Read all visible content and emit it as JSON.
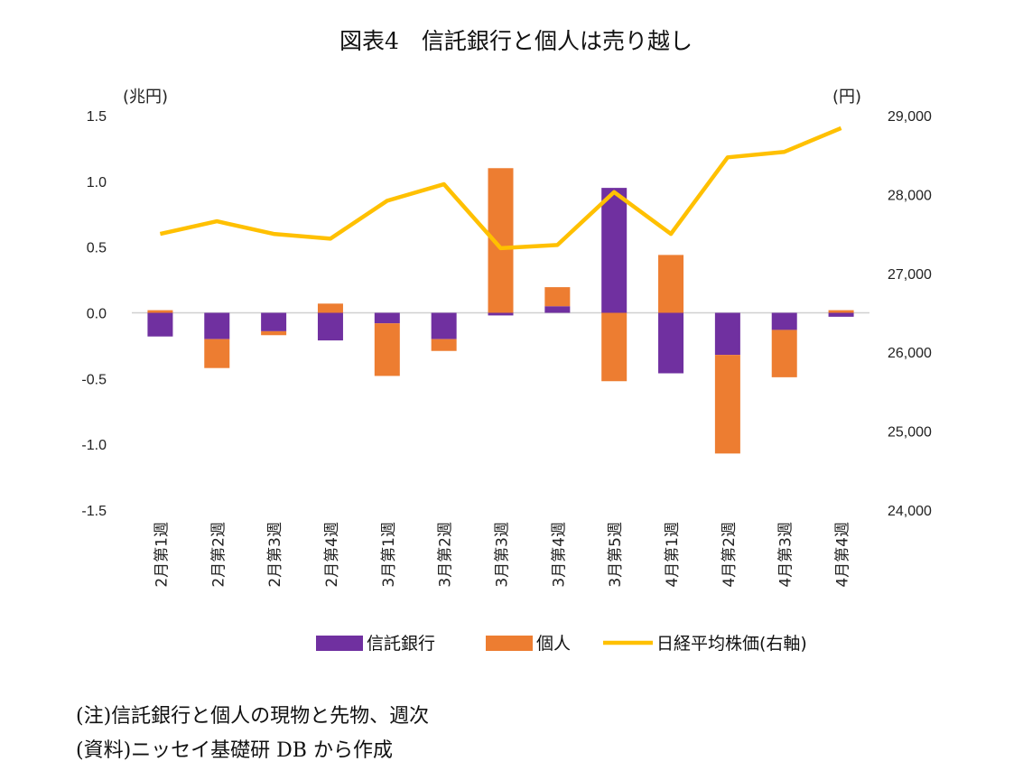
{
  "title": "図表4　信託銀行と個人は売り越し",
  "chart_data": {
    "type": "bar",
    "stacked": true,
    "categories": [
      "2月第1週",
      "2月第2週",
      "2月第3週",
      "2月第4週",
      "3月第1週",
      "3月第2週",
      "3月第3週",
      "3月第4週",
      "3月第5週",
      "4月第1週",
      "4月第2週",
      "4月第3週",
      "4月第4週"
    ],
    "y_left": {
      "unit_label": "(兆円)",
      "ylim": [
        -1.5,
        1.5
      ],
      "ticks": [
        "1.5",
        "1.0",
        "0.5",
        "0.0",
        "-0.5",
        "-1.0",
        "-1.5"
      ]
    },
    "y_right": {
      "unit_label": "(円)",
      "ylim": [
        24000,
        29000
      ],
      "ticks": [
        "29,000",
        "28,000",
        "27,000",
        "26,000",
        "25,000",
        "24,000"
      ]
    },
    "series": [
      {
        "name": "信託銀行",
        "type": "bar",
        "axis": "left",
        "color": "#7030a0",
        "values": [
          -0.18,
          -0.2,
          -0.14,
          -0.21,
          -0.08,
          -0.2,
          -0.02,
          0.05,
          0.95,
          -0.46,
          -0.32,
          -0.13,
          -0.03
        ]
      },
      {
        "name": "個人",
        "type": "bar",
        "axis": "left",
        "color": "#ed7d31",
        "values": [
          0.02,
          -0.22,
          -0.03,
          0.07,
          -0.4,
          -0.09,
          1.1,
          0.145,
          -0.52,
          0.44,
          -0.75,
          -0.36,
          0.02
        ]
      },
      {
        "name": "日経平均株価(右軸)",
        "type": "line",
        "axis": "right",
        "color": "#ffc000",
        "values": [
          27500,
          27660,
          27500,
          27440,
          27920,
          28130,
          27320,
          27360,
          28030,
          27500,
          28470,
          28540,
          28840
        ]
      }
    ],
    "grid": false,
    "legend": "bottom"
  },
  "notes": [
    "(注)信託銀行と個人の現物と先物、週次",
    "(資料)ニッセイ基礎研 DB から作成"
  ]
}
